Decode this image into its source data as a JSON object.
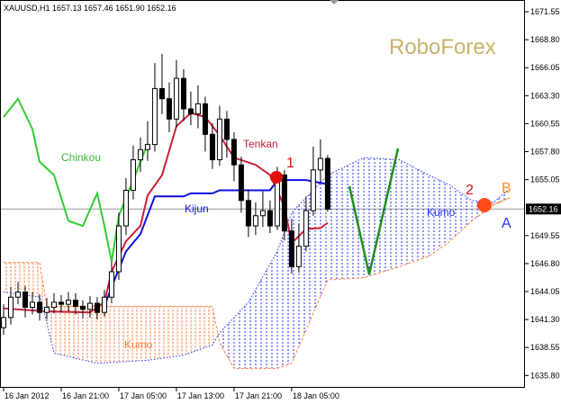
{
  "chart_data": {
    "type": "candlestick",
    "title": "XAUUSD,H1  1657.13 1657.46 1651.90 1652.16",
    "watermark": "RoboForex",
    "x": [
      0,
      1,
      2,
      3,
      4,
      5,
      6,
      7,
      8,
      9,
      10,
      11,
      12,
      13,
      14,
      15,
      16,
      17,
      18,
      19,
      20,
      21,
      22,
      23,
      24,
      25,
      26,
      27,
      28,
      29,
      30,
      31,
      32,
      33,
      34,
      35,
      36,
      37,
      38,
      39,
      40,
      41,
      42,
      43,
      44,
      45
    ],
    "open": [
      1640.5,
      1641.5,
      1643.5,
      1644.0,
      1642.5,
      1643.0,
      1642.0,
      1642.5,
      1643.0,
      1642.8,
      1643.2,
      1642.6,
      1642.3,
      1642.9,
      1642.0,
      1643.5,
      1646.0,
      1650.5,
      1654.0,
      1657.0,
      1658.0,
      1658.5,
      1664.0,
      1663.0,
      1661.0,
      1665.0,
      1662.0,
      1661.5,
      1662.5,
      1659.5,
      1657.0,
      1661.0,
      1659.0,
      1656.5,
      1653.0,
      1650.5,
      1651.5,
      1652.0,
      1650.5,
      1655.5,
      1650.0,
      1646.5,
      1648.5,
      1652.0,
      1656.0,
      1657.13
    ],
    "high": [
      1642.8,
      1644.5,
      1645.0,
      1644.6,
      1644.0,
      1643.8,
      1643.4,
      1643.9,
      1643.7,
      1644.0,
      1643.9,
      1643.2,
      1643.6,
      1643.5,
      1644.2,
      1647.0,
      1651.8,
      1655.2,
      1658.4,
      1659.2,
      1660.8,
      1666.5,
      1667.4,
      1664.6,
      1666.8,
      1665.9,
      1663.7,
      1664.3,
      1663.2,
      1660.6,
      1662.3,
      1661.8,
      1659.7,
      1657.3,
      1654.1,
      1652.8,
      1653.9,
      1653.0,
      1656.3,
      1656.0,
      1651.2,
      1650.7,
      1653.4,
      1658.3,
      1659.0,
      1657.46
    ],
    "low": [
      1639.8,
      1640.8,
      1642.8,
      1641.5,
      1641.8,
      1641.2,
      1641.3,
      1641.9,
      1642.0,
      1642.1,
      1641.8,
      1641.4,
      1641.5,
      1641.3,
      1641.6,
      1642.9,
      1645.2,
      1649.6,
      1653.1,
      1655.8,
      1656.9,
      1657.8,
      1661.5,
      1659.7,
      1660.2,
      1660.8,
      1660.4,
      1660.1,
      1657.8,
      1656.1,
      1656.4,
      1657.2,
      1654.9,
      1651.8,
      1649.4,
      1649.6,
      1650.4,
      1649.8,
      1650.1,
      1649.1,
      1645.8,
      1645.9,
      1648.0,
      1651.5,
      1654.8,
      1651.9
    ],
    "close": [
      1641.5,
      1643.5,
      1644.0,
      1642.5,
      1643.0,
      1642.0,
      1642.5,
      1643.0,
      1642.8,
      1643.2,
      1642.6,
      1642.3,
      1642.9,
      1642.0,
      1643.5,
      1646.0,
      1650.5,
      1654.0,
      1657.0,
      1658.0,
      1658.5,
      1664.0,
      1663.0,
      1661.0,
      1665.0,
      1662.0,
      1661.5,
      1662.5,
      1659.5,
      1657.0,
      1661.0,
      1659.0,
      1656.5,
      1653.0,
      1650.5,
      1651.5,
      1652.0,
      1650.5,
      1655.5,
      1650.0,
      1646.5,
      1648.5,
      1652.0,
      1656.0,
      1657.13,
      1652.16
    ],
    "up_color": "#ffffff",
    "down_color": "#000000",
    "series": [
      {
        "name": "Senkou B",
        "color": "#ff7f3f",
        "style": "dashed",
        "x": [
          0,
          5,
          6,
          7,
          13,
          20,
          25,
          29,
          30,
          32,
          34,
          38,
          40,
          45,
          50,
          55,
          59,
          62,
          65,
          68,
          70
        ],
        "values": [
          1646.9,
          1646.9,
          1642.6,
          1642.6,
          1642.6,
          1642.6,
          1642.6,
          1642.6,
          1639.0,
          1636.5,
          1636.5,
          1636.5,
          1637.0,
          1645.2,
          1645.4,
          1646.5,
          1647.5,
          1649.0,
          1651.0,
          1652.5,
          1653.2
        ]
      },
      {
        "name": "Senkou A",
        "color": "#2030ff",
        "style": "dotted",
        "x": [
          0,
          5,
          6,
          7,
          13,
          20,
          25,
          29,
          30,
          32,
          34,
          38,
          40,
          45,
          50,
          55,
          59,
          62,
          65,
          68,
          70
        ],
        "values": [
          1644.0,
          1643.5,
          1641.0,
          1638.0,
          1637.0,
          1637.3,
          1637.8,
          1638.8,
          1640.0,
          1641.5,
          1643.0,
          1648.0,
          1651.8,
          1655.5,
          1657.2,
          1657.0,
          1655.5,
          1654.5,
          1653.0,
          1652.8,
          1654.0
        ]
      },
      {
        "name": "Chinkou",
        "color": "#33cc33",
        "style": "solid",
        "x": [
          0,
          2,
          4,
          5,
          7,
          9,
          11,
          13,
          14,
          15,
          16,
          18,
          20
        ],
        "values": [
          1661.2,
          1663.0,
          1660.0,
          1656.8,
          1655.5,
          1651.0,
          1650.5,
          1653.7,
          1650.5,
          1647.0,
          1651.5,
          1655.0,
          1658.6
        ]
      },
      {
        "name": "Kijun",
        "color": "#1010e0",
        "style": "solid",
        "x": [
          14,
          15,
          17,
          19,
          21,
          25,
          26,
          29,
          30,
          37,
          38,
          42,
          45
        ],
        "values": [
          1642.6,
          1644.5,
          1648.0,
          1649.7,
          1653.4,
          1653.4,
          1653.7,
          1653.7,
          1654.0,
          1654.0,
          1655.0,
          1655.0,
          1654.6
        ]
      },
      {
        "name": "Tenkan",
        "color": "#cc1f3a",
        "style": "solid",
        "x": [
          0,
          6,
          12,
          14,
          15,
          17,
          19,
          20,
          22,
          24,
          26,
          28,
          30,
          32,
          35,
          37,
          39,
          40,
          42,
          44,
          45
        ],
        "values": [
          1642.4,
          1642.1,
          1642.0,
          1643.0,
          1646.0,
          1649.0,
          1650.5,
          1653.5,
          1655.5,
          1660.3,
          1661.6,
          1661.2,
          1659.4,
          1657.2,
          1656.5,
          1655.5,
          1652.4,
          1648.8,
          1650.2,
          1650.3,
          1650.8
        ]
      }
    ],
    "fill_colors": {
      "bullish": "#2030ff",
      "bearish": "#ff7f3f"
    },
    "xlim": [
      -0.5,
      72.4
    ],
    "xticks": [
      {
        "value": 0,
        "label": "16 Jan 2012"
      },
      {
        "value": 8,
        "label": "16 Jan 21:00"
      },
      {
        "value": 16,
        "label": "17 Jan 05:00"
      },
      {
        "value": 24,
        "label": "17 Jan 13:00"
      },
      {
        "value": 32,
        "label": "17 Jan 21:00"
      },
      {
        "value": 40,
        "label": "18 Jan 05:00"
      }
    ],
    "ylim": [
      1634.68,
      1672.7
    ],
    "yticks": [
      1671.55,
      {
        "value": 1668.8,
        "label": "1668.80"
      },
      1666.05,
      {
        "value": 1663.3,
        "label": "1663.30"
      },
      1660.55,
      {
        "value": 1657.8,
        "label": "1657.80"
      },
      1655.05,
      1649.55,
      {
        "value": 1646.8,
        "label": "1646.80"
      },
      1644.05,
      {
        "value": 1641.3,
        "label": "1641.30"
      },
      1638.55,
      {
        "value": 1635.8,
        "label": "1635.80"
      }
    ],
    "current_price": 1652.16,
    "annotations": [
      {
        "text": "Chinkou",
        "color": "#33bb33"
      },
      {
        "text": "Tenkan",
        "color": "#cc1f3a"
      },
      {
        "text": "Kijun",
        "color": "#1010e0"
      },
      {
        "text": "Kumo",
        "color": "#ff7f3f"
      },
      {
        "text": "Kumo",
        "color": "#2030ff"
      },
      {
        "text": "1",
        "color": "#e01010"
      },
      {
        "text": "2",
        "color": "#e01010"
      },
      {
        "text": "B",
        "color": "#ff8c1a"
      },
      {
        "text": "A",
        "color": "#2030ff"
      }
    ]
  }
}
